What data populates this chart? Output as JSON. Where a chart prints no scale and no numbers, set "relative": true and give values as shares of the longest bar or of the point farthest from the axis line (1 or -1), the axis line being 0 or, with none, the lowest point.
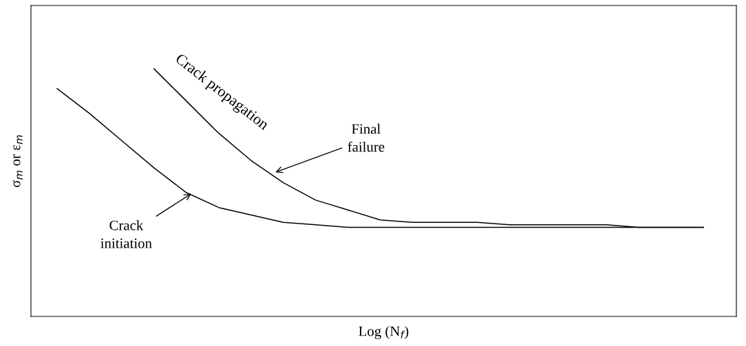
{
  "chart_data": {
    "type": "line",
    "relative": true,
    "xlabel": "Log (N$_{f}$)",
    "ylabel": "σ$_{m}$ or ε$_{m}$",
    "categories": [
      null,
      null,
      null,
      null,
      null,
      null,
      null,
      null,
      null,
      null,
      null,
      null,
      null,
      null,
      null,
      null,
      null,
      null,
      null,
      null,
      null
    ],
    "series": [
      {
        "color": "#000000",
        "values": [
          0.92,
          0.82,
          0.71,
          0.6,
          0.5,
          0.44,
          0.41,
          0.38,
          0.37,
          0.36,
          0.36,
          0.36,
          0.36,
          0.36,
          0.36,
          0.36,
          0.36,
          0.36,
          0.36,
          0.36,
          0.36
        ]
      },
      {
        "color": "#000000",
        "values": [
          null,
          null,
          null,
          1,
          0.87,
          0.74,
          0.63,
          0.54,
          0.47,
          0.43,
          0.39,
          0.38,
          0.38,
          0.38,
          0.37,
          0.37,
          0.37,
          0.37,
          0.36,
          0.36,
          0.36
        ]
      }
    ],
    "annotations": [
      "Crack propagation",
      "Final\nfailure",
      "Crack\ninitiation"
    ],
    "legend": false,
    "grid": false,
    "tick_labels": false,
    "marker": "none",
    "line_style": "solid"
  }
}
